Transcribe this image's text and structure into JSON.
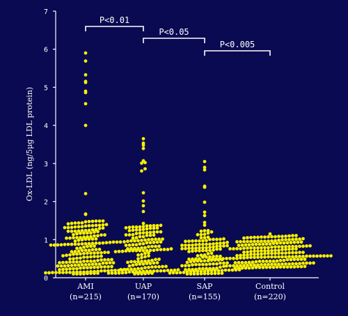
{
  "chart_data": {
    "type": "scatter",
    "subtype": "beeswarm",
    "ylabel": "Ox-LDL (ng/5μg LDL protein)",
    "ylim": [
      0,
      7
    ],
    "yticks": [
      "0",
      "1",
      "2",
      "3",
      "4",
      "5",
      "6",
      "7"
    ],
    "grid": false,
    "legend": "none",
    "background_color": "#0a0a52",
    "dot_color": "#f5f000",
    "text_color": "#ffffff",
    "categories": [
      {
        "name": "AMI",
        "n_label": "(n=215)",
        "n": 215,
        "median": 0.85,
        "max": 5.9
      },
      {
        "name": "UAP",
        "n_label": "(n=170)",
        "n": 170,
        "median": 0.8,
        "max": 3.65
      },
      {
        "name": "SAP",
        "n_label": "(n=155)",
        "n": 155,
        "median": 0.7,
        "max": 3.05
      },
      {
        "name": "Control",
        "n_label": "(n=220)",
        "n": 220,
        "median": 0.55,
        "max": 1.15
      }
    ],
    "annotations": [
      {
        "text": "P<0.01",
        "from": "AMI",
        "to": "UAP"
      },
      {
        "text": "P<0.05",
        "from": "UAP",
        "to": "SAP"
      },
      {
        "text": "P<0.005",
        "from": "SAP",
        "to": "Control"
      }
    ]
  }
}
